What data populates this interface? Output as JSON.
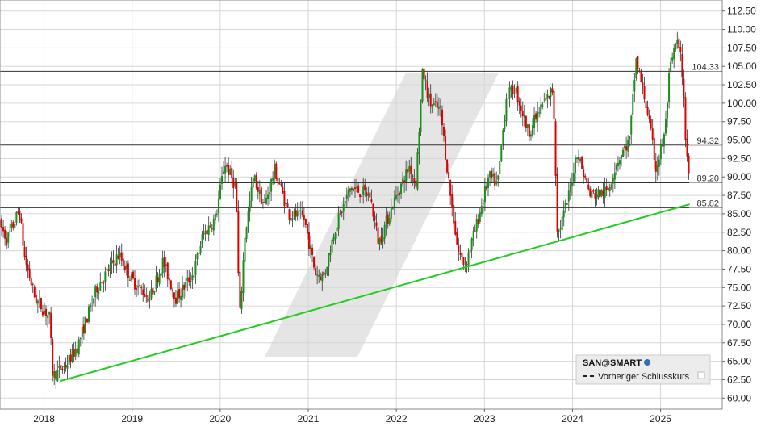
{
  "chart_data": {
    "type": "candlestick",
    "title": "",
    "xlabel": "",
    "ylabel": "",
    "ylim": [
      58.5,
      114.0
    ],
    "y_ticks": [
      60.0,
      62.5,
      65.0,
      67.5,
      70.0,
      72.5,
      75.0,
      77.5,
      80.0,
      82.5,
      85.0,
      87.5,
      90.0,
      92.5,
      95.0,
      97.5,
      100.0,
      102.5,
      105.0,
      107.5,
      110.0,
      112.5
    ],
    "y_tick_labels": [
      "60.00",
      "62.50",
      "65.00",
      "67.50",
      "70.00",
      "72.50",
      "75.00",
      "77.50",
      "80.00",
      "82.50",
      "85.00",
      "87.50",
      "90.00",
      "92.50",
      "95.00",
      "97.50",
      "100.00",
      "102.50",
      "105.00",
      "107.50",
      "110.00",
      "112.50"
    ],
    "xlim": [
      2017.5,
      2025.7
    ],
    "x_ticks": [
      2018,
      2019,
      2020,
      2021,
      2022,
      2023,
      2024,
      2025
    ],
    "x_tick_labels": [
      "2018",
      "2019",
      "2020",
      "2021",
      "2022",
      "2023",
      "2024",
      "2025"
    ],
    "grid": true,
    "up_color": "#1a8f1a",
    "down_color": "#e00000",
    "price_path": [
      [
        2017.5,
        83.5
      ],
      [
        2017.58,
        81.5
      ],
      [
        2017.72,
        85.5
      ],
      [
        2017.78,
        79.0
      ],
      [
        2017.9,
        73.5
      ],
      [
        2018.06,
        71.0
      ],
      [
        2018.1,
        63.0
      ],
      [
        2018.25,
        64.5
      ],
      [
        2018.38,
        67.0
      ],
      [
        2018.6,
        75.0
      ],
      [
        2018.85,
        79.5
      ],
      [
        2019.0,
        76.0
      ],
      [
        2019.2,
        73.5
      ],
      [
        2019.35,
        78.5
      ],
      [
        2019.5,
        73.5
      ],
      [
        2019.7,
        77.0
      ],
      [
        2019.8,
        82.0
      ],
      [
        2019.95,
        84.5
      ],
      [
        2020.05,
        92.0
      ],
      [
        2020.18,
        88.5
      ],
      [
        2020.22,
        70.5
      ],
      [
        2020.28,
        82.0
      ],
      [
        2020.38,
        90.0
      ],
      [
        2020.5,
        86.0
      ],
      [
        2020.62,
        91.0
      ],
      [
        2020.78,
        85.0
      ],
      [
        2020.95,
        84.5
      ],
      [
        2021.08,
        77.0
      ],
      [
        2021.18,
        76.5
      ],
      [
        2021.3,
        83.0
      ],
      [
        2021.48,
        88.5
      ],
      [
        2021.7,
        87.5
      ],
      [
        2021.8,
        81.0
      ],
      [
        2021.95,
        86.0
      ],
      [
        2022.15,
        91.5
      ],
      [
        2022.22,
        89.0
      ],
      [
        2022.3,
        104.5
      ],
      [
        2022.38,
        100.0
      ],
      [
        2022.5,
        99.0
      ],
      [
        2022.62,
        87.0
      ],
      [
        2022.7,
        80.0
      ],
      [
        2022.78,
        78.0
      ],
      [
        2022.9,
        83.0
      ],
      [
        2023.05,
        90.0
      ],
      [
        2023.15,
        89.0
      ],
      [
        2023.25,
        101.0
      ],
      [
        2023.35,
        102.0
      ],
      [
        2023.5,
        96.0
      ],
      [
        2023.65,
        99.5
      ],
      [
        2023.78,
        102.0
      ],
      [
        2023.83,
        82.0
      ],
      [
        2023.95,
        87.0
      ],
      [
        2024.05,
        93.5
      ],
      [
        2024.2,
        87.5
      ],
      [
        2024.4,
        88.0
      ],
      [
        2024.5,
        92.0
      ],
      [
        2024.65,
        95.0
      ],
      [
        2024.72,
        106.0
      ],
      [
        2024.85,
        99.0
      ],
      [
        2024.95,
        91.0
      ],
      [
        2025.05,
        96.0
      ],
      [
        2025.1,
        104.0
      ],
      [
        2025.18,
        108.5
      ],
      [
        2025.24,
        105.5
      ],
      [
        2025.28,
        96.0
      ],
      [
        2025.32,
        90.5
      ]
    ],
    "horizontal_lines": [
      {
        "value": 104.33,
        "label": "104.33"
      },
      {
        "value": 94.32,
        "label": "94.32"
      },
      {
        "value": 89.2,
        "label": "89.20"
      },
      {
        "value": 85.82,
        "label": "85.82"
      }
    ],
    "trendline": {
      "x": [
        2018.18,
        2025.33
      ],
      "y": [
        62.3,
        86.3
      ],
      "color": "#22cc22"
    },
    "legend": {
      "position": "bottom-right",
      "symbol": "SAN@SMART",
      "series_label": "Vorheriger Schlusskurs"
    }
  }
}
